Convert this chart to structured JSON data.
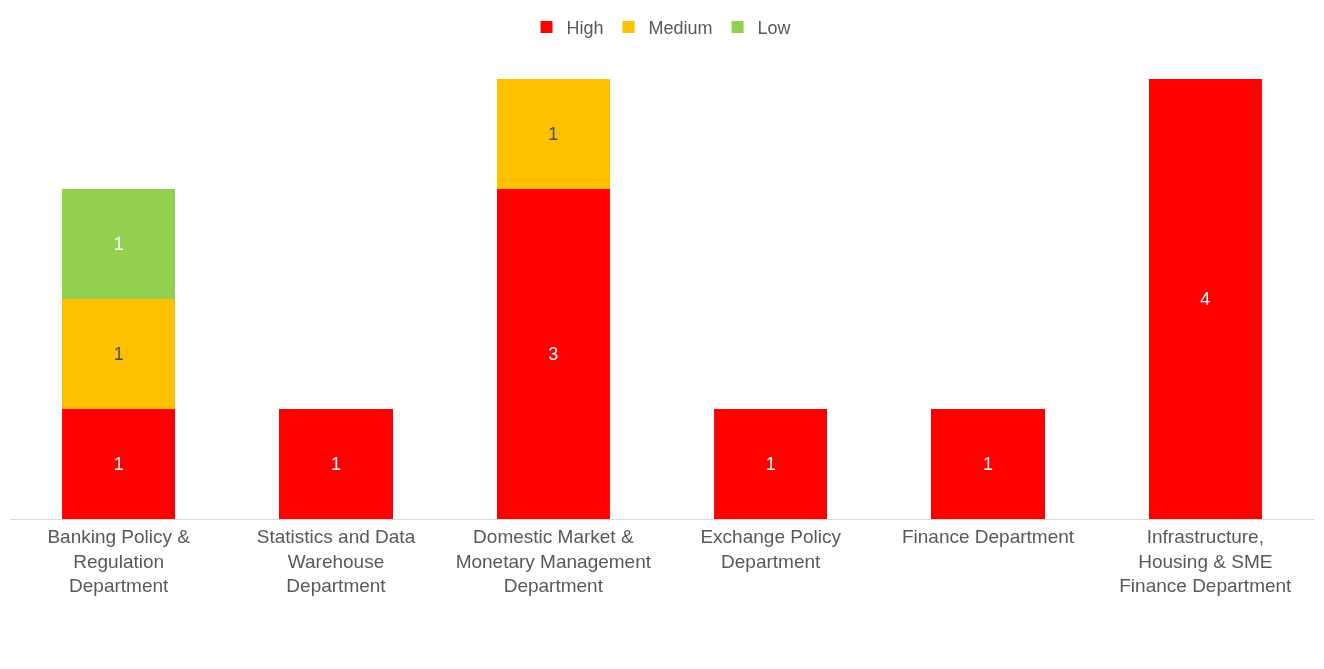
{
  "chart_data": {
    "type": "bar",
    "stacked": true,
    "data_labels": true,
    "legend": "top",
    "categories": [
      "Banking Policy & Regulation Department",
      "Statistics and Data Warehouse Department",
      "Domestic Market & Monetary Management Department",
      "Exchange Policy Department",
      "Finance Department",
      "Infrastructure, Housing & SME Finance Department"
    ],
    "series": [
      {
        "name": "High",
        "color": "#ff0000",
        "values": [
          1,
          1,
          3,
          1,
          1,
          4
        ]
      },
      {
        "name": "Medium",
        "color": "#ffc000",
        "values": [
          1,
          null,
          1,
          null,
          null,
          null
        ]
      },
      {
        "name": "Low",
        "color": "#92d050",
        "values": [
          1,
          null,
          null,
          null,
          null,
          null
        ]
      }
    ]
  }
}
